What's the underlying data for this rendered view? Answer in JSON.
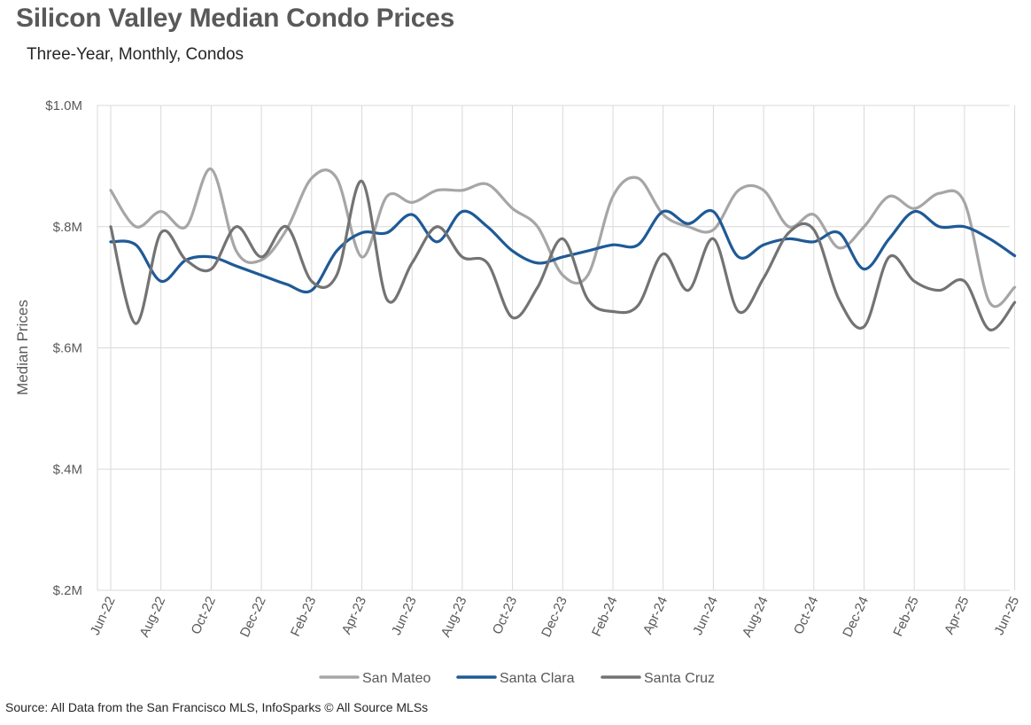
{
  "title": "Silicon Valley Median Condo Prices",
  "subtitle": "Three-Year, Monthly, Condos",
  "source": "Source: All Data from the San Francisco MLS, InfoSparks © All Source MLSs",
  "chart_data": {
    "type": "line",
    "ylabel": "Median Prices",
    "ylim": [
      0.2,
      1.0
    ],
    "y_ticks": [
      {
        "value": 0.2,
        "label": "$.2M"
      },
      {
        "value": 0.4,
        "label": "$.4M"
      },
      {
        "value": 0.6,
        "label": "$.6M"
      },
      {
        "value": 0.8,
        "label": "$.8M"
      },
      {
        "value": 1.0,
        "label": "$1.0M"
      }
    ],
    "x": [
      "Jun-22",
      "Jul-22",
      "Aug-22",
      "Sep-22",
      "Oct-22",
      "Nov-22",
      "Dec-22",
      "Jan-23",
      "Feb-23",
      "Mar-23",
      "Apr-23",
      "May-23",
      "Jun-23",
      "Jul-23",
      "Aug-23",
      "Sep-23",
      "Oct-23",
      "Nov-23",
      "Dec-23",
      "Jan-24",
      "Feb-24",
      "Mar-24",
      "Apr-24",
      "May-24",
      "Jun-24",
      "Jul-24",
      "Aug-24",
      "Sep-24",
      "Oct-24",
      "Nov-24",
      "Dec-24",
      "Jan-25",
      "Feb-25",
      "Mar-25",
      "Apr-25",
      "May-25",
      "Jun-25"
    ],
    "x_tick_labels": [
      "Jun-22",
      "Aug-22",
      "Oct-22",
      "Dec-22",
      "Feb-23",
      "Apr-23",
      "Jun-23",
      "Aug-23",
      "Oct-23",
      "Dec-23",
      "Feb-24",
      "Apr-24",
      "Jun-24",
      "Aug-24",
      "Oct-24",
      "Dec-24",
      "Feb-25",
      "Apr-25",
      "Jun-25"
    ],
    "grid": true,
    "legend_position": "bottom",
    "series": [
      {
        "name": "San Mateo",
        "color": "#a6a6a6",
        "values": [
          0.86,
          0.8,
          0.825,
          0.8,
          0.895,
          0.76,
          0.745,
          0.795,
          0.88,
          0.88,
          0.75,
          0.85,
          0.84,
          0.86,
          0.86,
          0.87,
          0.83,
          0.8,
          0.72,
          0.72,
          0.85,
          0.88,
          0.82,
          0.8,
          0.795,
          0.86,
          0.86,
          0.8,
          0.82,
          0.765,
          0.8,
          0.85,
          0.83,
          0.855,
          0.84,
          0.675,
          0.7
        ]
      },
      {
        "name": "Santa Clara",
        "color": "#1f5a96",
        "values": [
          0.775,
          0.77,
          0.71,
          0.745,
          0.75,
          0.735,
          0.72,
          0.705,
          0.695,
          0.76,
          0.79,
          0.79,
          0.82,
          0.775,
          0.825,
          0.8,
          0.76,
          0.74,
          0.75,
          0.76,
          0.77,
          0.77,
          0.825,
          0.805,
          0.825,
          0.75,
          0.77,
          0.78,
          0.775,
          0.79,
          0.73,
          0.78,
          0.825,
          0.8,
          0.8,
          0.78,
          0.752
        ]
      },
      {
        "name": "Santa Cruz",
        "color": "#737373",
        "values": [
          0.8,
          0.64,
          0.79,
          0.745,
          0.73,
          0.8,
          0.75,
          0.8,
          0.71,
          0.72,
          0.875,
          0.68,
          0.74,
          0.8,
          0.75,
          0.74,
          0.65,
          0.7,
          0.78,
          0.68,
          0.66,
          0.67,
          0.755,
          0.695,
          0.78,
          0.66,
          0.715,
          0.79,
          0.795,
          0.68,
          0.635,
          0.75,
          0.71,
          0.695,
          0.71,
          0.63,
          0.675
        ]
      }
    ]
  }
}
